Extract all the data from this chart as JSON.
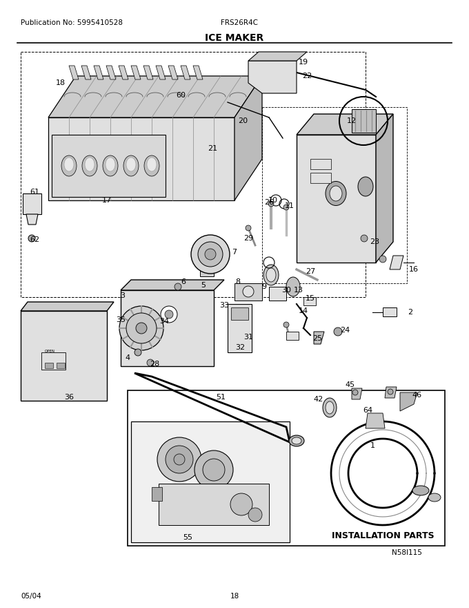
{
  "title": "ICE MAKER",
  "pub_no": "Publication No: 5995410528",
  "model": "FRS26R4C",
  "date": "05/04",
  "page": "18",
  "diagram_id": "N58I115",
  "installation_parts_label": "INSTALLATION PARTS",
  "background_color": "#ffffff",
  "text_color": "#000000",
  "figure_width": 6.8,
  "figure_height": 8.8,
  "dpi": 100,
  "header_fontsize": 7.5,
  "title_fontsize": 10,
  "label_fontsize": 8,
  "small_label_fontsize": 6.5
}
